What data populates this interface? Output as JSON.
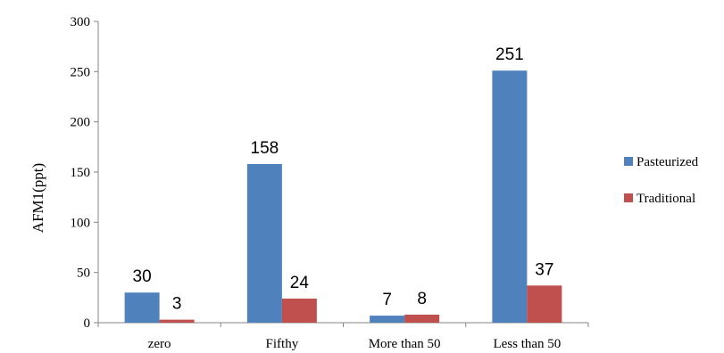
{
  "chart_data": {
    "type": "bar",
    "categories": [
      "zero",
      "Fifthy",
      "More than 50",
      "Less than 50"
    ],
    "series": [
      {
        "name": "Pasteurized",
        "values": [
          30,
          158,
          7,
          251
        ],
        "color": "#4F81BD"
      },
      {
        "name": "Traditional",
        "values": [
          3,
          24,
          8,
          37
        ],
        "color": "#C0504D"
      }
    ],
    "ylabel": "AFM1(ppt)",
    "xlabel": "",
    "ylim": [
      0,
      300
    ],
    "yticks": [
      0,
      50,
      100,
      150,
      200,
      250,
      300
    ],
    "grid": false,
    "legend_position": "right"
  }
}
